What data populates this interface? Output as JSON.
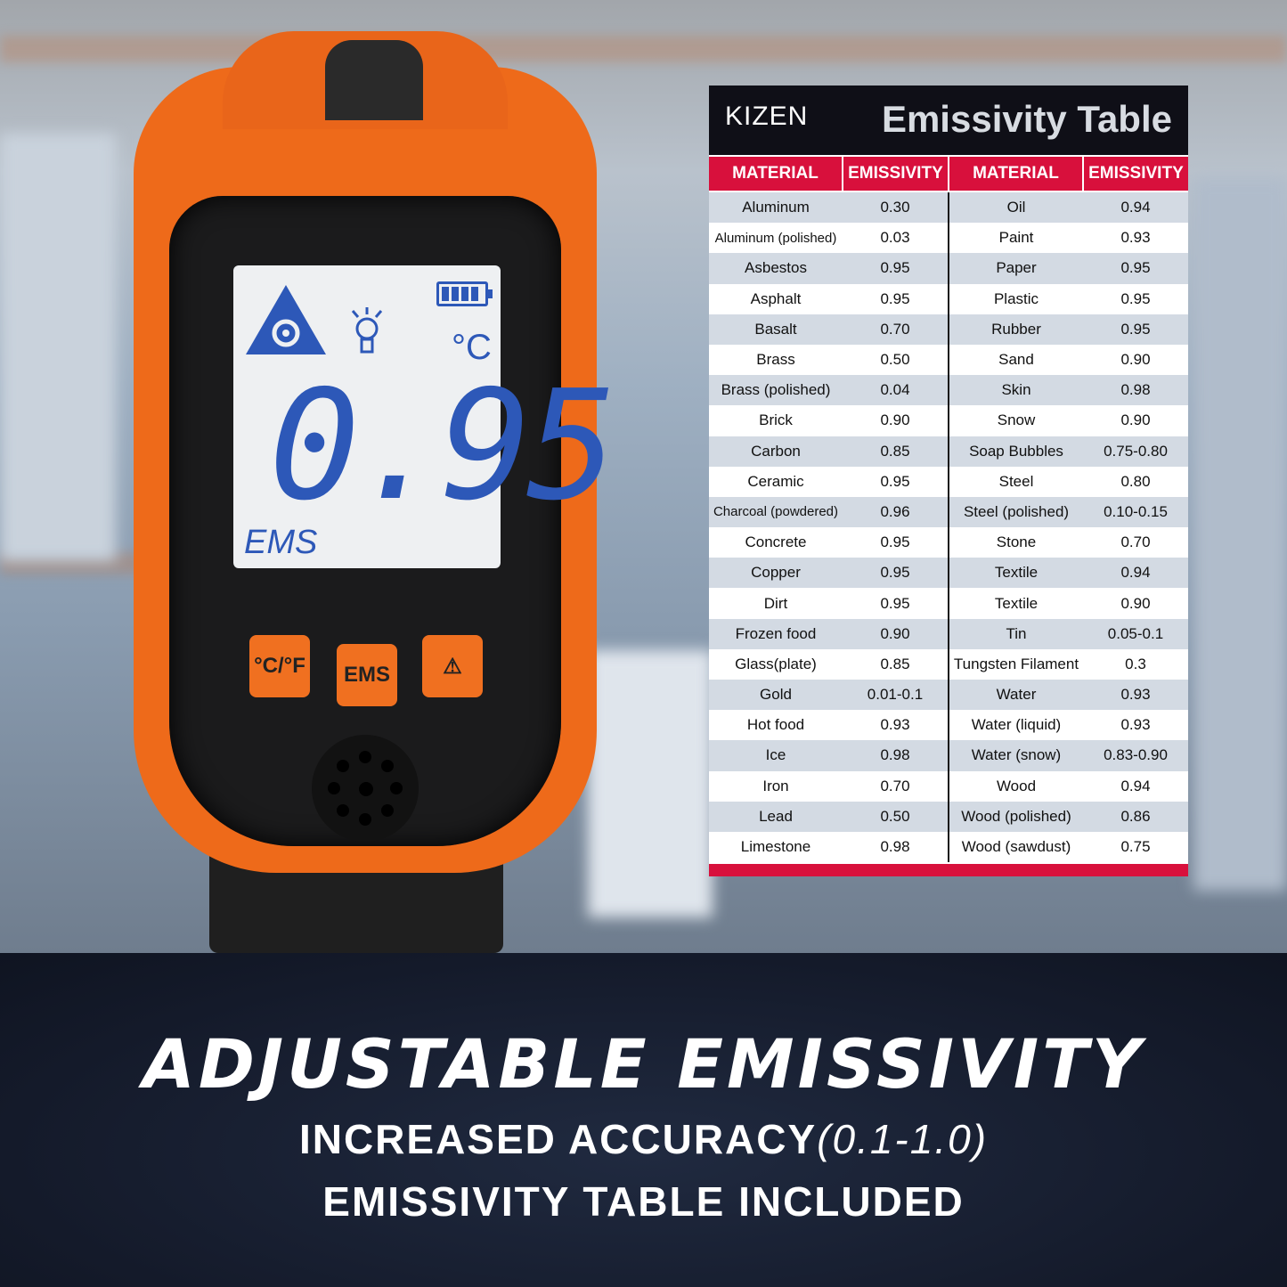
{
  "device": {
    "lcd_value": "0.95",
    "lcd_mode": "EMS",
    "lcd_unit": "°C",
    "icons": [
      "laser-warning-icon",
      "backlight-bulb-icon",
      "battery-full-icon"
    ],
    "buttons": [
      "°C/°F",
      "EMS",
      "⚠"
    ],
    "body_color": "#ee6a1a",
    "lcd_color": "#2d58b8"
  },
  "table": {
    "brand": "KIZEN",
    "title": "Emissivity Table",
    "headers": [
      "MATERIAL",
      "EMISSIVITY",
      "MATERIAL",
      "EMISSIVITY"
    ],
    "accent_color": "#d8103c",
    "rows": [
      [
        "Aluminum",
        "0.30",
        "Oil",
        "0.94"
      ],
      [
        "Aluminum (polished)",
        "0.03",
        "Paint",
        "0.93"
      ],
      [
        "Asbestos",
        "0.95",
        "Paper",
        "0.95"
      ],
      [
        "Asphalt",
        "0.95",
        "Plastic",
        "0.95"
      ],
      [
        "Basalt",
        "0.70",
        "Rubber",
        "0.95"
      ],
      [
        "Brass",
        "0.50",
        "Sand",
        "0.90"
      ],
      [
        "Brass (polished)",
        "0.04",
        "Skin",
        "0.98"
      ],
      [
        "Brick",
        "0.90",
        "Snow",
        "0.90"
      ],
      [
        "Carbon",
        "0.85",
        "Soap Bubbles",
        "0.75-0.80"
      ],
      [
        "Ceramic",
        "0.95",
        "Steel",
        "0.80"
      ],
      [
        "Charcoal (powdered)",
        "0.96",
        "Steel (polished)",
        "0.10-0.15"
      ],
      [
        "Concrete",
        "0.95",
        "Stone",
        "0.70"
      ],
      [
        "Copper",
        "0.95",
        "Textile",
        "0.94"
      ],
      [
        "Dirt",
        "0.95",
        "Textile",
        "0.90"
      ],
      [
        "Frozen food",
        "0.90",
        "Tin",
        "0.05-0.1"
      ],
      [
        "Glass(plate)",
        "0.85",
        "Tungsten Filament",
        "0.3"
      ],
      [
        "Gold",
        "0.01-0.1",
        "Water",
        "0.93"
      ],
      [
        "Hot food",
        "0.93",
        "Water (liquid)",
        "0.93"
      ],
      [
        "Ice",
        "0.98",
        "Water (snow)",
        "0.83-0.90"
      ],
      [
        "Iron",
        "0.70",
        "Wood",
        "0.94"
      ],
      [
        "Lead",
        "0.50",
        "Wood (polished)",
        "0.86"
      ],
      [
        "Limestone",
        "0.98",
        "Wood (sawdust)",
        "0.75"
      ]
    ]
  },
  "banner": {
    "title": "ADJUSTABLE EMISSIVITY",
    "line1": "INCREASED ACCURACY",
    "line1_range": "(0.1-1.0)",
    "line2": "EMISSIVITY TABLE INCLUDED"
  }
}
